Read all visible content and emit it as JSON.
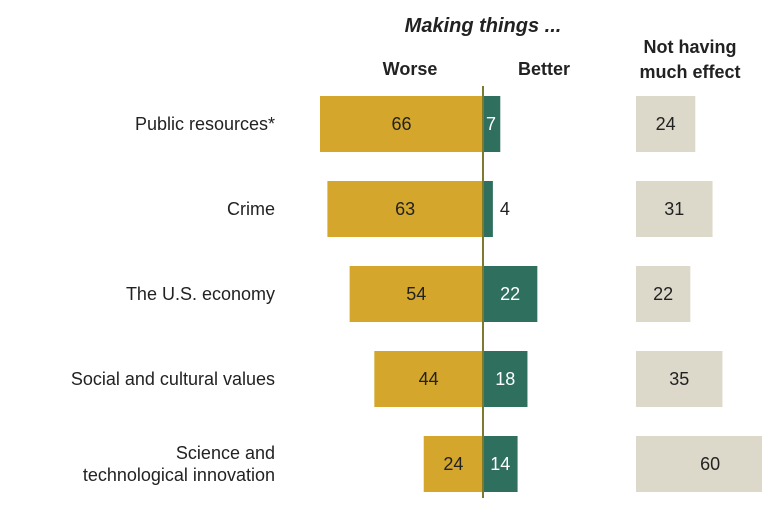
{
  "headers": {
    "group": "Making things ...",
    "worse": "Worse",
    "better": "Better",
    "no_effect_line1": "Not having",
    "no_effect_line2": "much effect"
  },
  "colors": {
    "worse": "#d4a72c",
    "better": "#2f6f5e",
    "no_effect": "#ddd9ca",
    "axis": "#7d7a2e",
    "text_dark": "#222222",
    "text_light": "#ffffff"
  },
  "chart_data": {
    "type": "bar",
    "orientation": "horizontal-diverging",
    "categories": [
      [
        "Public resources*"
      ],
      [
        "Crime"
      ],
      [
        "The U.S. economy"
      ],
      [
        "Social and cultural values"
      ],
      [
        "Science and",
        "technological innovation"
      ]
    ],
    "series": [
      {
        "name": "Worse",
        "values": [
          66,
          63,
          54,
          44,
          24
        ]
      },
      {
        "name": "Better",
        "values": [
          7,
          4,
          22,
          18,
          14
        ]
      },
      {
        "name": "Not having much effect",
        "values": [
          24,
          31,
          22,
          35,
          60
        ]
      }
    ]
  }
}
